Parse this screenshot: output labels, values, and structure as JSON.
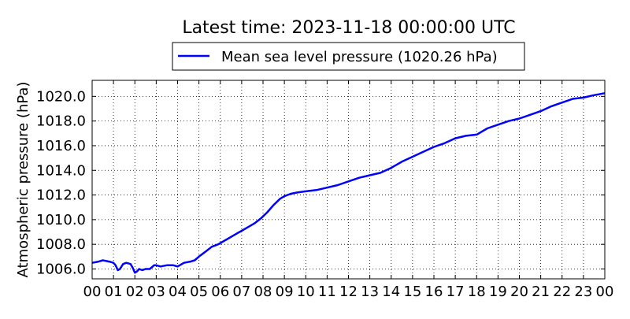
{
  "colors": {
    "line": "#0000ff",
    "axis": "#000000",
    "grid": "#000000"
  },
  "chart_data": {
    "type": "line",
    "title": "Latest time: 2023-11-18 00:00:00 UTC",
    "xlabel": "",
    "ylabel": "Atmospheric pressure (hPa)",
    "xlim": [
      0,
      24
    ],
    "ylim": [
      1005.2,
      1021.3
    ],
    "grid": true,
    "legend_position": "top-center",
    "x_tick_labels": [
      "00",
      "01",
      "02",
      "03",
      "04",
      "05",
      "06",
      "07",
      "08",
      "09",
      "10",
      "11",
      "12",
      "13",
      "14",
      "15",
      "16",
      "17",
      "18",
      "19",
      "20",
      "21",
      "22",
      "23",
      "00"
    ],
    "y_ticks": [
      1006.0,
      1008.0,
      1010.0,
      1012.0,
      1014.0,
      1016.0,
      1018.0,
      1020.0
    ],
    "y_tick_labels": [
      "1006.0",
      "1008.0",
      "1010.0",
      "1012.0",
      "1014.0",
      "1016.0",
      "1018.0",
      "1020.0"
    ],
    "series": [
      {
        "name": "Mean sea level pressure (1020.26 hPa)",
        "x": [
          0.0,
          0.3,
          0.5,
          0.8,
          1.0,
          1.1,
          1.2,
          1.3,
          1.45,
          1.6,
          1.8,
          1.9,
          2.0,
          2.1,
          2.2,
          2.35,
          2.5,
          2.7,
          2.9,
          3.0,
          3.2,
          3.5,
          3.8,
          4.0,
          4.1,
          4.3,
          4.6,
          4.8,
          5.0,
          5.3,
          5.6,
          5.9,
          6.2,
          6.5,
          6.8,
          7.0,
          7.3,
          7.6,
          7.9,
          8.2,
          8.5,
          8.8,
          9.0,
          9.3,
          9.6,
          10.0,
          10.5,
          11.0,
          11.5,
          12.0,
          12.5,
          13.0,
          13.5,
          14.0,
          14.5,
          15.0,
          15.5,
          16.0,
          16.5,
          17.0,
          17.5,
          18.0,
          18.5,
          19.0,
          19.5,
          20.0,
          20.5,
          21.0,
          21.5,
          22.0,
          22.5,
          23.0,
          23.5,
          24.0
        ],
        "y": [
          1006.5,
          1006.6,
          1006.7,
          1006.6,
          1006.5,
          1006.3,
          1005.9,
          1006.0,
          1006.4,
          1006.5,
          1006.4,
          1006.1,
          1005.7,
          1005.8,
          1006.0,
          1005.9,
          1006.0,
          1006.0,
          1006.3,
          1006.3,
          1006.2,
          1006.3,
          1006.3,
          1006.2,
          1006.3,
          1006.5,
          1006.6,
          1006.7,
          1007.0,
          1007.4,
          1007.8,
          1008.0,
          1008.3,
          1008.6,
          1008.9,
          1009.1,
          1009.4,
          1009.7,
          1010.1,
          1010.6,
          1011.2,
          1011.7,
          1011.9,
          1012.1,
          1012.2,
          1012.3,
          1012.4,
          1012.6,
          1012.8,
          1013.1,
          1013.4,
          1013.6,
          1013.8,
          1014.2,
          1014.7,
          1015.1,
          1015.5,
          1015.9,
          1016.2,
          1016.6,
          1016.8,
          1016.9,
          1017.4,
          1017.7,
          1018.0,
          1018.2,
          1018.5,
          1018.8,
          1019.2,
          1019.5,
          1019.8,
          1019.9,
          1020.1,
          1020.26
        ]
      }
    ]
  }
}
